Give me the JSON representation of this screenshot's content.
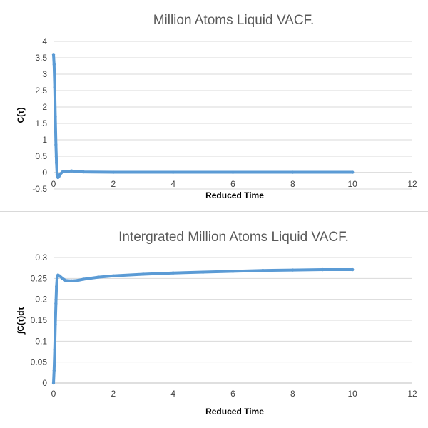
{
  "chart_data": [
    {
      "type": "line",
      "title": "Million Atoms Liquid VACF.",
      "xlabel": "Reduced Time",
      "ylabel": "C(τ)",
      "xlim": [
        0,
        12
      ],
      "ylim": [
        -0.5,
        4
      ],
      "x_ticks": [
        "0",
        "2",
        "4",
        "6",
        "8",
        "10",
        "12"
      ],
      "y_ticks": [
        "-0.5",
        "0",
        "0.5",
        "1",
        "1.5",
        "2",
        "2.5",
        "3",
        "3.5",
        "4"
      ],
      "grid": "horizontal",
      "series": [
        {
          "color": "#5b9bd5",
          "x": [
            0,
            0.02,
            0.04,
            0.06,
            0.08,
            0.1,
            0.12,
            0.15,
            0.18,
            0.22,
            0.3,
            0.4,
            0.5,
            0.6,
            0.7,
            0.8,
            1,
            2,
            4,
            6,
            8,
            10
          ],
          "y": [
            3.6,
            3.3,
            2.6,
            1.7,
            0.85,
            0.3,
            -0.05,
            -0.15,
            -0.12,
            -0.05,
            0.02,
            0.03,
            0.04,
            0.05,
            0.04,
            0.03,
            0.02,
            0.01,
            0.01,
            0.01,
            0.01,
            0.01
          ]
        }
      ]
    },
    {
      "type": "line",
      "title": "Intergrated Million Atoms Liquid VACF.",
      "xlabel": "Reduced Time",
      "ylabel": "∫C(τ)dτ",
      "xlim": [
        0,
        12
      ],
      "ylim": [
        0,
        0.3
      ],
      "x_ticks": [
        "0",
        "2",
        "4",
        "6",
        "8",
        "10",
        "12"
      ],
      "y_ticks": [
        "0",
        "0.05",
        "0.1",
        "0.15",
        "0.2",
        "0.25",
        "0.3"
      ],
      "grid": "horizontal",
      "series": [
        {
          "color": "#5b9bd5",
          "x": [
            0,
            0.02,
            0.04,
            0.06,
            0.08,
            0.1,
            0.12,
            0.15,
            0.2,
            0.3,
            0.4,
            0.6,
            0.8,
            1,
            1.5,
            2,
            3,
            4,
            5,
            6,
            7,
            8,
            9,
            10
          ],
          "y": [
            0,
            0.03,
            0.08,
            0.14,
            0.19,
            0.23,
            0.25,
            0.258,
            0.256,
            0.25,
            0.245,
            0.244,
            0.245,
            0.248,
            0.253,
            0.256,
            0.26,
            0.263,
            0.265,
            0.267,
            0.269,
            0.27,
            0.271,
            0.271
          ]
        }
      ]
    }
  ]
}
